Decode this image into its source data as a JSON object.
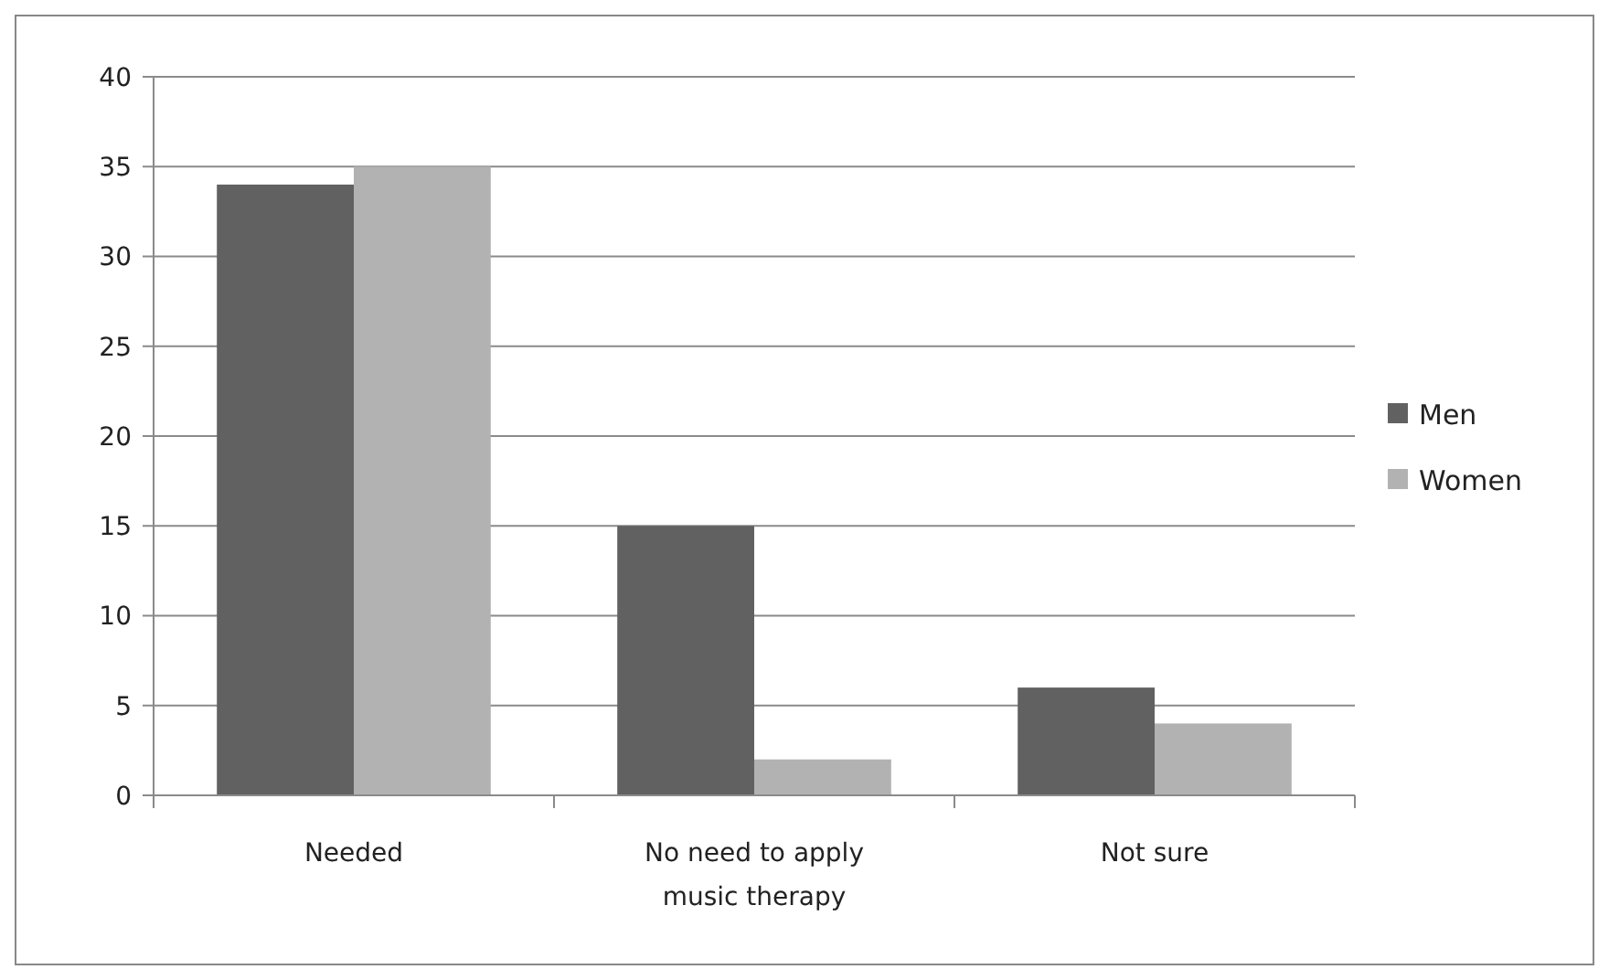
{
  "chart_data": {
    "type": "bar",
    "categories": [
      "Needed",
      "No need to apply music therapy",
      "Not sure"
    ],
    "series": [
      {
        "name": "Men",
        "color": "#616161",
        "values": [
          34,
          15,
          6
        ]
      },
      {
        "name": "Women",
        "color": "#b2b2b2",
        "values": [
          35,
          2,
          4
        ]
      }
    ],
    "ylim": [
      0,
      40
    ],
    "yticks": [
      0,
      5,
      10,
      15,
      20,
      25,
      30,
      35,
      40
    ],
    "grid": "y",
    "legend": "right"
  }
}
